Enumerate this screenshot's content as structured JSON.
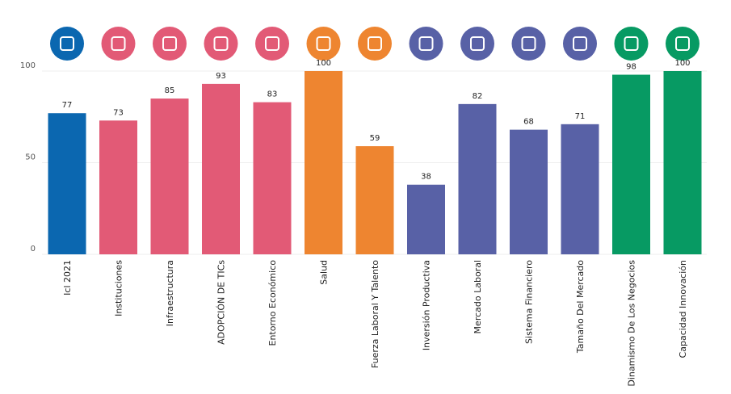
{
  "chart_data": {
    "type": "bar",
    "categories": [
      "Icl 2021",
      "Instituciones",
      "Infraestructura",
      "ADOPCIÓN DE TICs",
      "Entorno Económico",
      "Salud",
      "Fuerza Laboral Y Talento",
      "Inversión Productiva",
      "Mercado Laboral",
      "Sistema Financiero",
      "Tamaño Del Mercado",
      "Dinamismo De Los Negocios",
      "Capacidad Innovación"
    ],
    "values": [
      77,
      73,
      85,
      93,
      83,
      100,
      59,
      38,
      82,
      68,
      71,
      98,
      100
    ],
    "colors": [
      "#0b67b0",
      "#e25a76",
      "#e25a76",
      "#e25a76",
      "#e25a76",
      "#ee8530",
      "#ee8530",
      "#5861a6",
      "#5861a6",
      "#5861a6",
      "#5861a6",
      "#079a63",
      "#079a63"
    ],
    "ylim": [
      0,
      100
    ],
    "yticks": [
      0,
      50,
      100
    ],
    "grid": true
  }
}
